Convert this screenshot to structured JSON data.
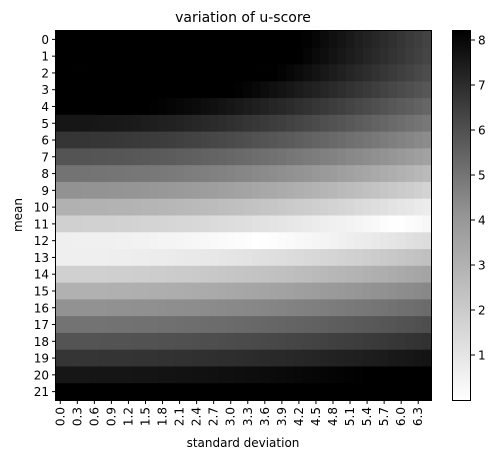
{
  "chart_data": {
    "type": "heatmap",
    "title": "variation of u-score",
    "xlabel": "standard deviation",
    "ylabel": "mean",
    "x_tick_labels": [
      "0.0",
      "0.3",
      "0.6",
      "0.9",
      "1.2",
      "1.5",
      "1.8",
      "2.1",
      "2.4",
      "2.7",
      "3.0",
      "3.3",
      "3.6",
      "3.9",
      "4.2",
      "4.5",
      "4.8",
      "5.1",
      "5.4",
      "5.7",
      "6.0",
      "6.3"
    ],
    "y_tick_labels": [
      "0",
      "1",
      "2",
      "3",
      "4",
      "5",
      "6",
      "7",
      "8",
      "9",
      "10",
      "11",
      "12",
      "13",
      "14",
      "15",
      "16",
      "17",
      "18",
      "19",
      "20",
      "21"
    ],
    "means": [
      0,
      1,
      2,
      3,
      4,
      5,
      6,
      7,
      8,
      9,
      10,
      11,
      12,
      13,
      14,
      15,
      16,
      17,
      18,
      19,
      20,
      21
    ],
    "std_start": 0.0,
    "std_step": 0.15,
    "std_count": 44,
    "reference_mean": 12.5,
    "colormap": "Greys",
    "colorbar": {
      "ticks": [
        1,
        2,
        3,
        4,
        5,
        6,
        7,
        8
      ],
      "min": 0,
      "max": 8.2
    }
  }
}
